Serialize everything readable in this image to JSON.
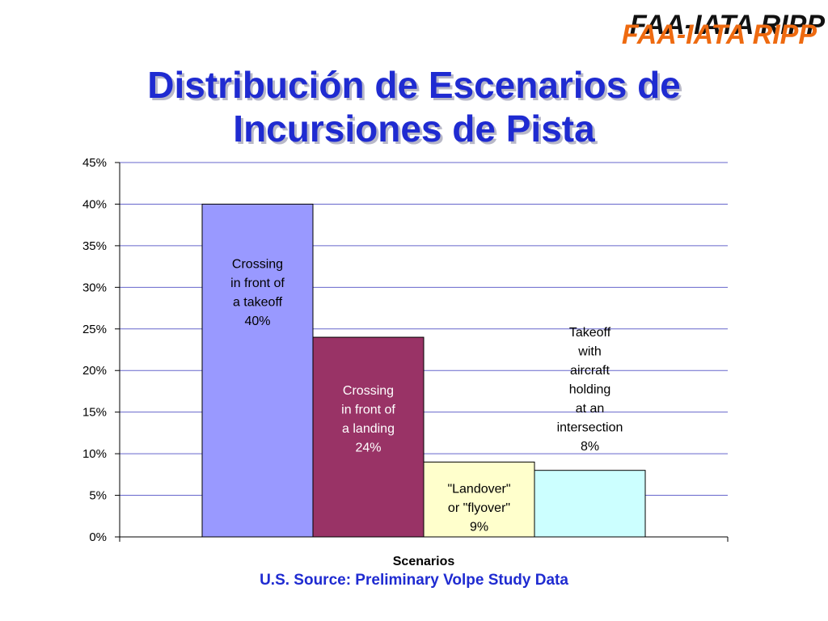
{
  "logo": {
    "text": "FAA-IATA RIPP",
    "color": "#ee6a10",
    "shadow_color": "#111111"
  },
  "title": {
    "line1": "Distribución de Escenarios de",
    "line2": "Incursiones  de Pista",
    "color": "#1f2bd1"
  },
  "source": "U.S. Source: Preliminary Volpe Study Data",
  "chart_data": {
    "type": "bar",
    "xlabel": "Scenarios",
    "ylabel": "",
    "ylim": [
      0,
      45
    ],
    "yticks": [
      "0%",
      "5%",
      "10%",
      "15%",
      "20%",
      "25%",
      "30%",
      "35%",
      "40%",
      "45%"
    ],
    "grid": true,
    "grid_color": "#6666cc",
    "categories": [
      "Crossing in front of a takeoff",
      "Crossing in front of a landing",
      "\"Landover\" or \"flyover\"",
      "Takeoff with aircraft holding at an intersection"
    ],
    "values": [
      40,
      24,
      9,
      8
    ],
    "colors": [
      "#9999ff",
      "#993366",
      "#ffffcc",
      "#ccffff"
    ],
    "label_colors": [
      "#000000",
      "#ffffff",
      "#000000",
      "#000000"
    ],
    "data_labels": [
      [
        "Crossing",
        "in front of",
        "a takeoff",
        "40%"
      ],
      [
        "Crossing",
        "in front of",
        "a landing",
        "24%"
      ],
      [
        "\"Landover\"",
        "or \"flyover\"",
        "9%"
      ],
      [
        "Takeoff",
        "with",
        "aircraft",
        "holding",
        "at an",
        "intersection",
        "8%"
      ]
    ]
  }
}
